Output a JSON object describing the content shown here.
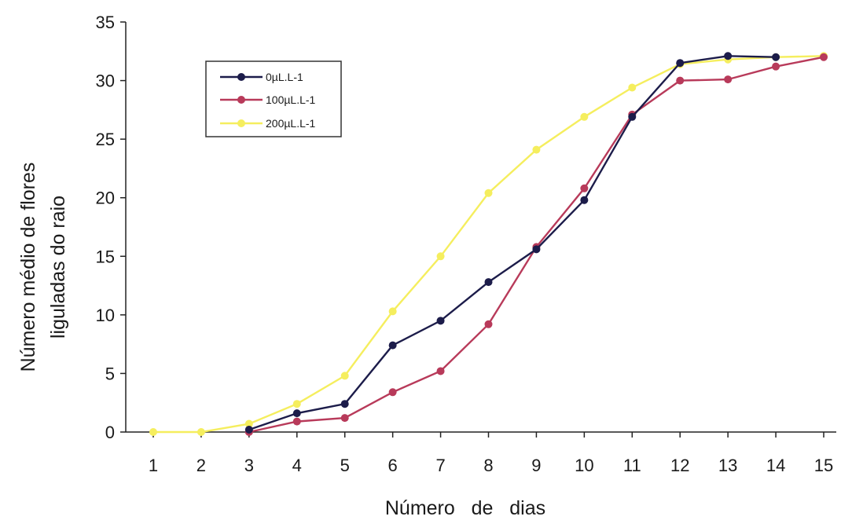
{
  "chart_data": {
    "type": "line",
    "title": "",
    "xlabel": "Número   de   dias",
    "ylabel_lines": [
      "Número médio de flores",
      "liguladas do raio"
    ],
    "xlim": [
      1,
      15
    ],
    "ylim": [
      0,
      35
    ],
    "x_ticks": [
      1,
      2,
      3,
      4,
      5,
      6,
      7,
      8,
      9,
      10,
      11,
      12,
      13,
      14,
      15
    ],
    "y_ticks": [
      0,
      5,
      10,
      15,
      20,
      25,
      30,
      35
    ],
    "grid": false,
    "legend_position": "top-left",
    "series": [
      {
        "name": "0µL.L-1",
        "color": "#1c1c4a",
        "x": [
          3,
          4,
          5,
          6,
          7,
          8,
          9,
          10,
          11,
          12,
          13,
          14
        ],
        "y": [
          0.2,
          1.6,
          2.4,
          7.4,
          9.5,
          12.8,
          15.6,
          19.8,
          26.9,
          31.5,
          32.1,
          32.0
        ]
      },
      {
        "name": "100µL.L-1",
        "color": "#b83a5a",
        "x": [
          3,
          4,
          5,
          6,
          7,
          8,
          9,
          10,
          11,
          12,
          13,
          14,
          15
        ],
        "y": [
          0.0,
          0.9,
          1.2,
          3.4,
          5.2,
          9.2,
          15.8,
          20.8,
          27.1,
          30.0,
          30.1,
          31.2,
          32.0
        ]
      },
      {
        "name": "200µL.L-1",
        "color": "#f5ee5e",
        "x": [
          1,
          2,
          3,
          4,
          5,
          6,
          7,
          8,
          9,
          10,
          11,
          12,
          13,
          14,
          15
        ],
        "y": [
          0.0,
          0.0,
          0.7,
          2.4,
          4.8,
          10.3,
          15.0,
          20.4,
          24.1,
          26.9,
          29.4,
          31.4,
          31.8,
          32.0,
          32.1
        ]
      }
    ]
  }
}
